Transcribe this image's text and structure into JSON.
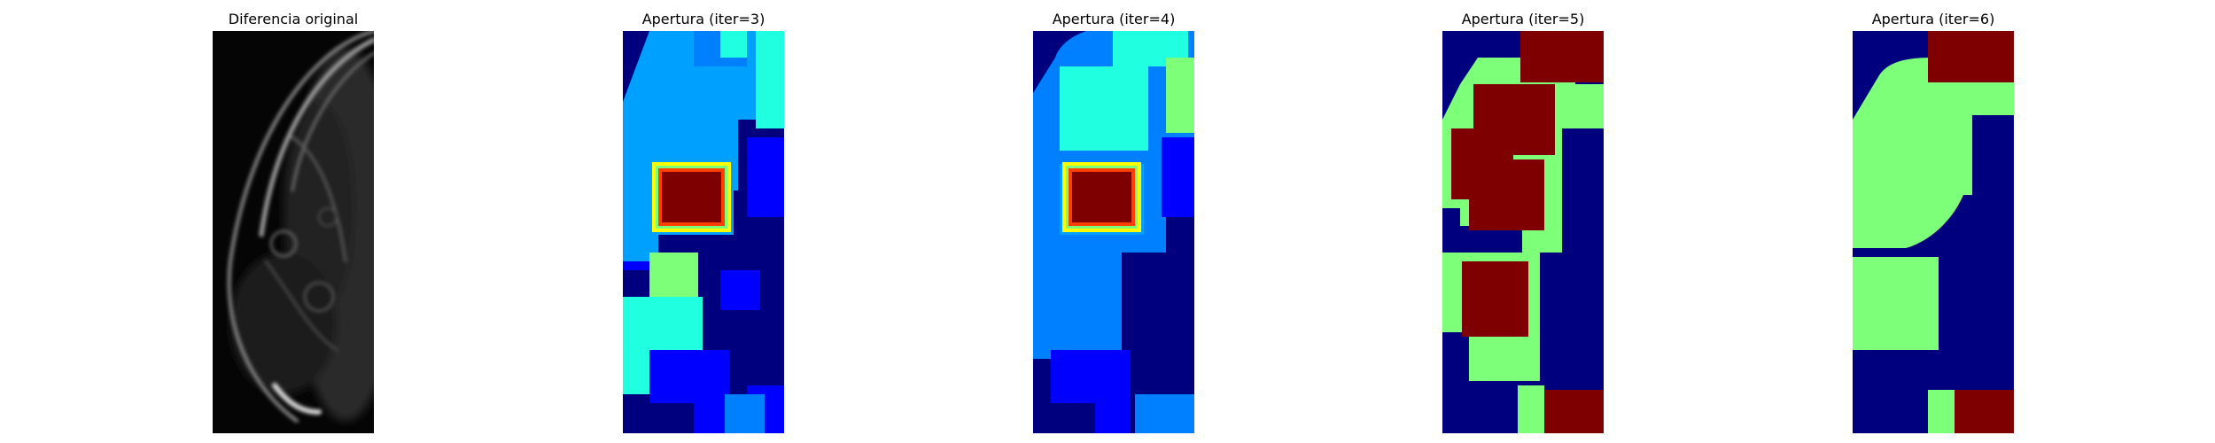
{
  "panels": [
    {
      "title": "Diferencia original",
      "kind": "grayscale"
    },
    {
      "title": "Apertura (iter=3)",
      "kind": "jet-labels"
    },
    {
      "title": "Apertura (iter=4)",
      "kind": "jet-labels"
    },
    {
      "title": "Apertura (iter=5)",
      "kind": "jet-labels"
    },
    {
      "title": "Apertura (iter=6)",
      "kind": "jet-labels"
    }
  ],
  "colors": {
    "jet_dark_blue": "#00007f",
    "jet_blue": "#0000ff",
    "jet_mid_blue": "#0080ff",
    "jet_light_blue": "#00a0ff",
    "jet_cyan": "#20ffe0",
    "jet_green": "#7dff7a",
    "jet_red": "#ff0000",
    "jet_dark_red": "#7f0000",
    "jet_yellow": "#ffff00",
    "gray_background": "#000000"
  }
}
